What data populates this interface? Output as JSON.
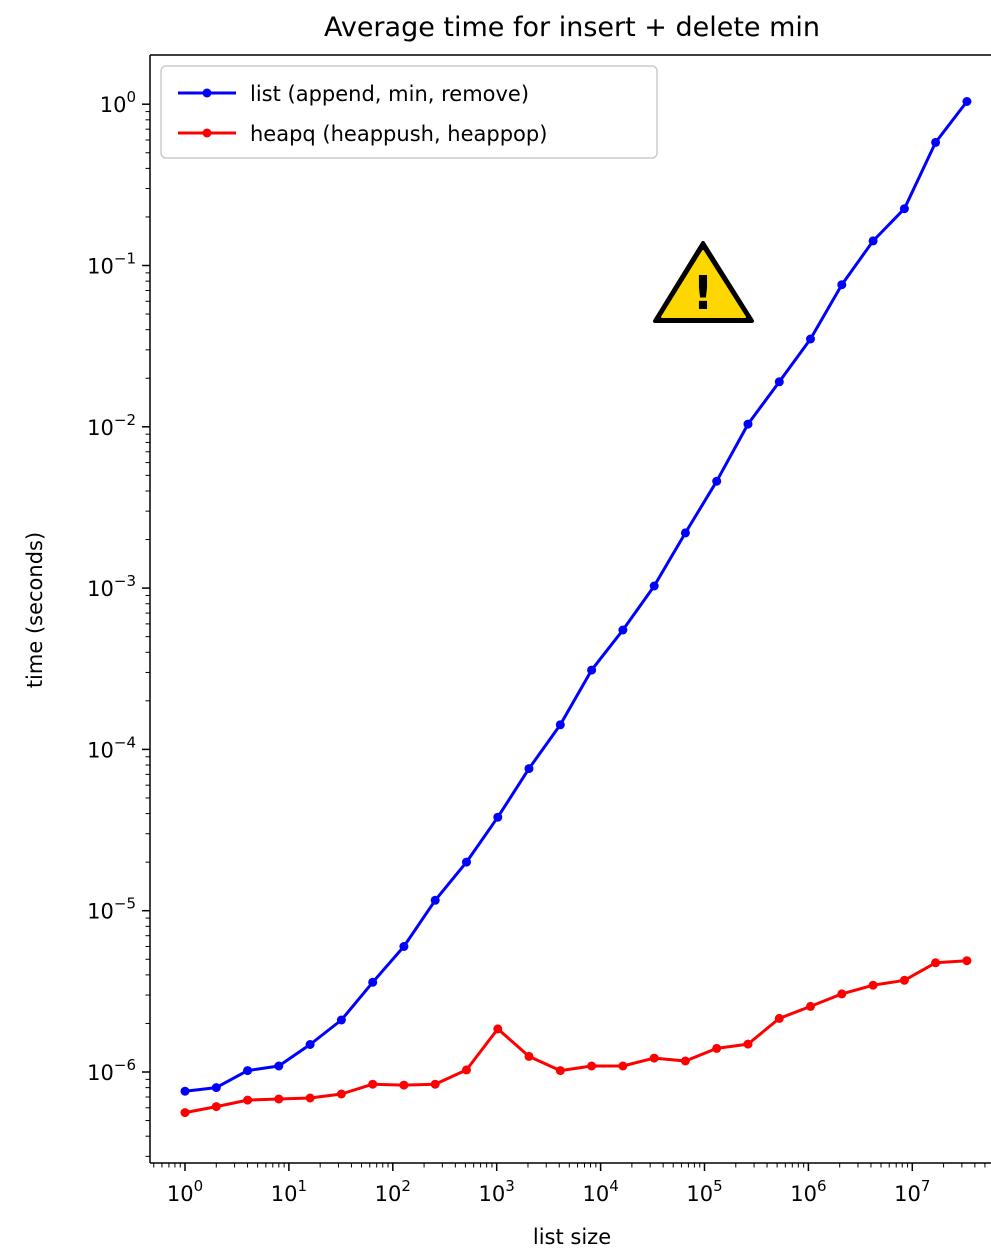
{
  "chart_data": {
    "type": "line",
    "title": "Average time for insert + delete min",
    "xlabel": "list size",
    "ylabel": "time (seconds)",
    "xscale": "log",
    "yscale": "log",
    "xlim": [
      0.5,
      45000000.0
    ],
    "ylim": [
      2.8e-07,
      2.1
    ],
    "grid": false,
    "legend_position": "top-left",
    "x_ticks": [
      {
        "value": 1,
        "base": "10",
        "exp": "0"
      },
      {
        "value": 10,
        "base": "10",
        "exp": "1"
      },
      {
        "value": 100,
        "base": "10",
        "exp": "2"
      },
      {
        "value": 1000,
        "base": "10",
        "exp": "3"
      },
      {
        "value": 10000,
        "base": "10",
        "exp": "4"
      },
      {
        "value": 100000,
        "base": "10",
        "exp": "5"
      },
      {
        "value": 1000000,
        "base": "10",
        "exp": "6"
      },
      {
        "value": 10000000,
        "base": "10",
        "exp": "7"
      }
    ],
    "y_ticks": [
      {
        "value": 1e-06,
        "base": "10",
        "exp": "−6"
      },
      {
        "value": 1e-05,
        "base": "10",
        "exp": "−5"
      },
      {
        "value": 0.0001,
        "base": "10",
        "exp": "−4"
      },
      {
        "value": 0.001,
        "base": "10",
        "exp": "−3"
      },
      {
        "value": 0.01,
        "base": "10",
        "exp": "−2"
      },
      {
        "value": 0.1,
        "base": "10",
        "exp": "−1"
      },
      {
        "value": 1,
        "base": "10",
        "exp": "0"
      }
    ],
    "x": [
      1,
      2,
      4,
      8,
      16,
      32,
      64,
      128,
      256,
      512,
      1024,
      2048,
      4096,
      8192,
      16384,
      32768,
      65536,
      131072,
      262144,
      524288,
      1048576,
      2097152,
      4194304,
      8388608,
      16777216,
      33554432
    ],
    "series": [
      {
        "name": "list (append, min, remove)",
        "color": "#0000ff",
        "values": [
          7.6e-07,
          8e-07,
          1.02e-06,
          1.09e-06,
          1.48e-06,
          2.1e-06,
          3.6e-06,
          6e-06,
          1.16e-05,
          2e-05,
          3.8e-05,
          7.6e-05,
          0.000142,
          0.00031,
          0.00055,
          0.00103,
          0.0022,
          0.0046,
          0.0104,
          0.019,
          0.035,
          0.076,
          0.142,
          0.225,
          0.58,
          1.04
        ]
      },
      {
        "name": "heapq (heappush, heappop)",
        "color": "#ff0000",
        "values": [
          5.6e-07,
          6.1e-07,
          6.7e-07,
          6.8e-07,
          6.9e-07,
          7.3e-07,
          8.4e-07,
          8.3e-07,
          8.4e-07,
          1.03e-06,
          1.85e-06,
          1.25e-06,
          1.02e-06,
          1.09e-06,
          1.09e-06,
          1.22e-06,
          1.17e-06,
          1.4e-06,
          1.49e-06,
          2.15e-06,
          2.55e-06,
          3.05e-06,
          3.45e-06,
          3.7e-06,
          4.75e-06,
          4.9e-06
        ]
      }
    ]
  },
  "warning_icon": {
    "name": "warning-icon",
    "glyph": "!",
    "fill": "#ffd700",
    "stroke": "#000000"
  }
}
